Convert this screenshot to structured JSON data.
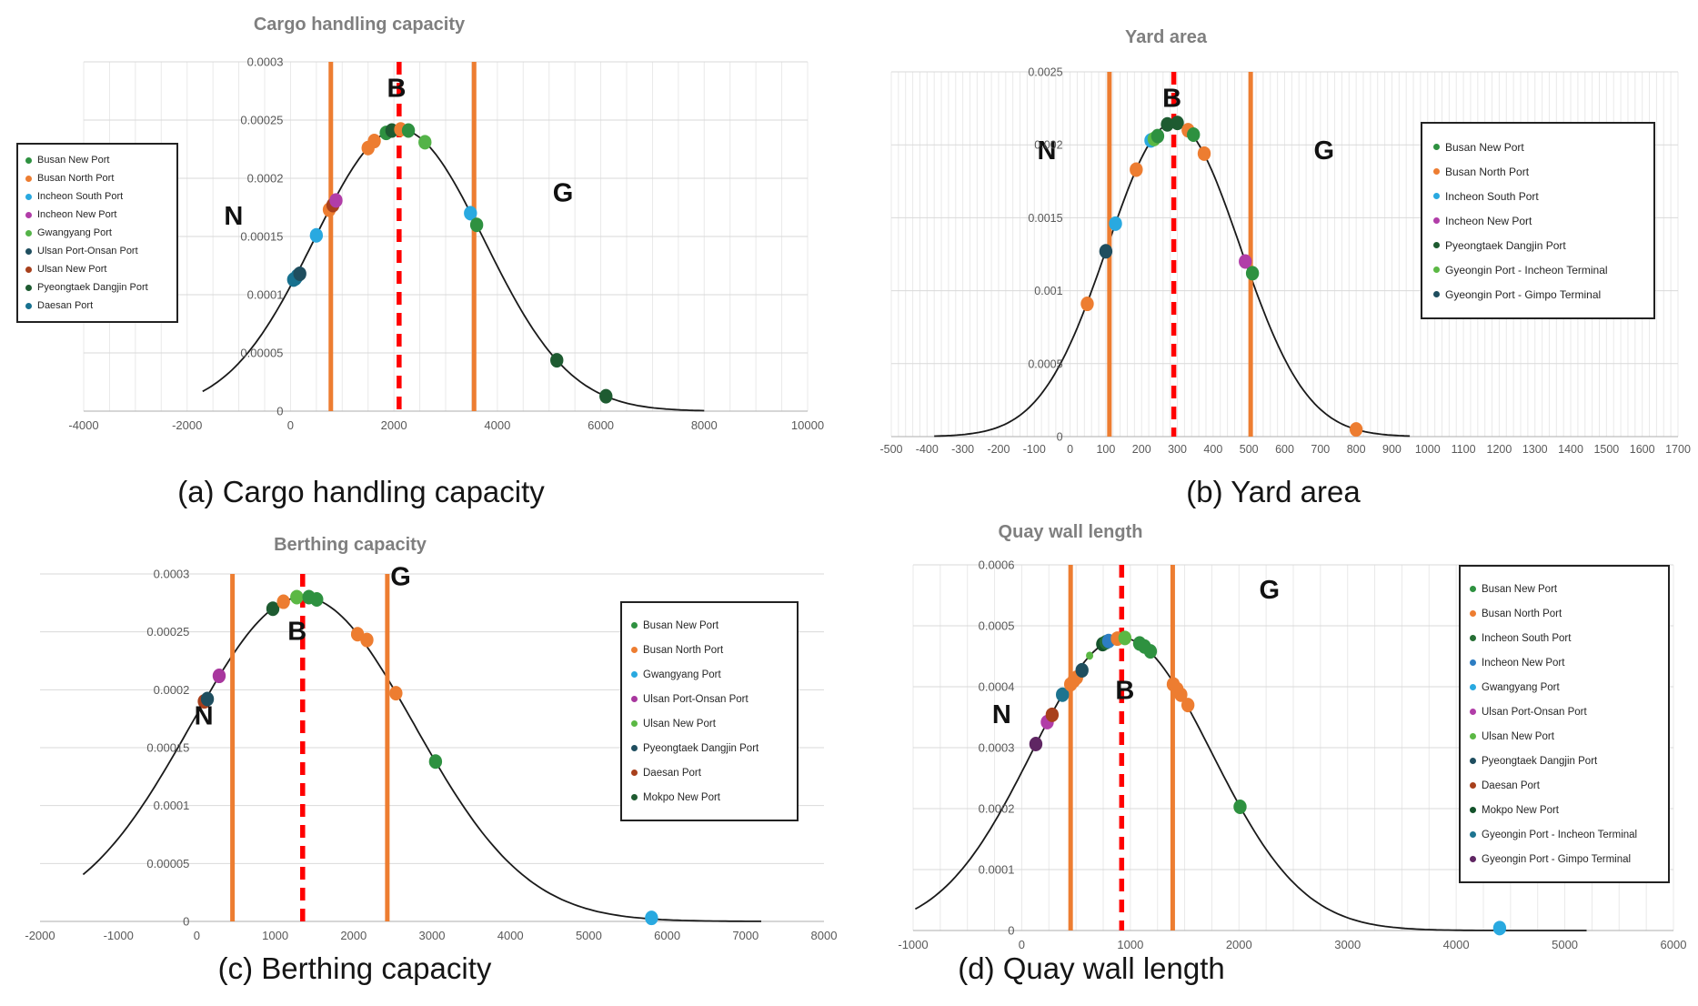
{
  "figure": {
    "captions": {
      "a": "(a) Cargo handling capacity",
      "b": "(b) Yard area",
      "c": "(c) Berthing capacity",
      "d": "(d) Quay wall length"
    }
  },
  "colors": {
    "orange_line": "#ED7D31",
    "red_dashed_line": "#FF0000",
    "curve": "#1a1a1a",
    "grid_horizontal": "#d9d9d9",
    "grid_vertical": "#e9e9e9",
    "axis_line": "#bdbdbd",
    "tick_text": "#595959",
    "annotation_text": "#111111",
    "title_text": "#7f7f7f"
  },
  "chart_data": [
    {
      "id": "a",
      "type": "scatter",
      "title": "Cargo handling capacity",
      "xlim": [
        -4000,
        10000
      ],
      "xticks": [
        -4000,
        -2000,
        0,
        2000,
        4000,
        6000,
        8000,
        10000
      ],
      "ylim": [
        0,
        0.0003
      ],
      "yticks": [
        0,
        5e-05,
        0.0001,
        0.00015,
        0.0002,
        0.00025,
        0.0003
      ],
      "ytick_labels": [
        "0",
        "0.00005",
        "0.0001",
        "0.00015",
        "0.0002",
        "0.00025",
        "0.0003"
      ],
      "x_minor_grid": 500,
      "curve": {
        "type": "normal_pdf",
        "mean": 2100,
        "sigma": 1648,
        "peak": 0.000242,
        "range": [
          -1700,
          8000
        ]
      },
      "marker_lines": {
        "orange": [
          780,
          3550
        ],
        "red_dashed": 2100
      },
      "annotations": [
        {
          "text": "N",
          "x": -1100,
          "y": 0.00016
        },
        {
          "text": "B",
          "x": 2050,
          "y": 0.00027
        },
        {
          "text": "G",
          "x": 5270,
          "y": 0.00018
        }
      ],
      "legend": {
        "position": "left",
        "items": [
          {
            "label": "Busan New Port",
            "color": "#2E9140"
          },
          {
            "label": "Busan North Port",
            "color": "#ED7D31"
          },
          {
            "label": "Incheon South Port",
            "color": "#29A9E0"
          },
          {
            "label": "Incheon New Port",
            "color": "#B13DA8"
          },
          {
            "label": "Gwangyang Port",
            "color": "#54B348"
          },
          {
            "label": "Ulsan Port-Onsan Port",
            "color": "#1F4E5F"
          },
          {
            "label": "Ulsan New Port",
            "color": "#A8401C"
          },
          {
            "label": "Pyeongtaek Dangjin Port",
            "color": "#1E5B31"
          },
          {
            "label": "Daesan Port",
            "color": "#17718F"
          }
        ]
      },
      "points": [
        {
          "port": "Daesan Port",
          "x": 60,
          "y": 0.000113
        },
        {
          "port": "Daesan Port",
          "x": 95,
          "y": 0.000114
        },
        {
          "port": "Daesan Port",
          "x": 130,
          "y": 0.000116
        },
        {
          "port": "Ulsan Port-Onsan Port",
          "x": 180,
          "y": 0.000118
        },
        {
          "port": "Incheon South Port",
          "x": 500,
          "y": 0.000151
        },
        {
          "port": "Busan North Port",
          "x": 750,
          "y": 0.000173
        },
        {
          "port": "Ulsan New Port",
          "x": 820,
          "y": 0.000177
        },
        {
          "port": "Incheon New Port",
          "x": 880,
          "y": 0.000181
        },
        {
          "port": "Busan North Port",
          "x": 1500,
          "y": 0.000226
        },
        {
          "port": "Busan North Port",
          "x": 1620,
          "y": 0.000232
        },
        {
          "port": "Busan New Port",
          "x": 1850,
          "y": 0.000239
        },
        {
          "port": "Pyeongtaek Dangjin Port",
          "x": 1960,
          "y": 0.000241
        },
        {
          "port": "Busan North Port",
          "x": 2130,
          "y": 0.000242
        },
        {
          "port": "Busan New Port",
          "x": 2280,
          "y": 0.000241
        },
        {
          "port": "Gwangyang Port",
          "x": 2600,
          "y": 0.000231
        },
        {
          "port": "Incheon South Port",
          "x": 3480,
          "y": 0.00017
        },
        {
          "port": "Busan New Port",
          "x": 3600,
          "y": 0.00016
        },
        {
          "port": "Pyeongtaek Dangjin Port",
          "x": 5150,
          "y": 4.37e-05
        },
        {
          "port": "Pyeongtaek Dangjin Port",
          "x": 6100,
          "y": 1.28e-05
        }
      ]
    },
    {
      "id": "b",
      "type": "scatter",
      "title": "Yard area",
      "xlim": [
        -500,
        1700
      ],
      "xticks": [
        -500,
        -400,
        -300,
        -200,
        -100,
        0,
        100,
        200,
        300,
        400,
        500,
        600,
        700,
        800,
        900,
        1000,
        1100,
        1200,
        1300,
        1400,
        1500,
        1600,
        1700
      ],
      "ylim": [
        0,
        0.0025
      ],
      "yticks": [
        0,
        0.0005,
        0.001,
        0.0015,
        0.002,
        0.0025
      ],
      "ytick_labels": [
        "0",
        "0.0005",
        "0.001",
        "0.0015",
        "0.002",
        "0.0025"
      ],
      "x_minor_grid": 20,
      "curve": {
        "type": "normal_pdf",
        "mean": 290,
        "sigma": 185.5,
        "peak": 0.00215,
        "range": [
          -380,
          950
        ]
      },
      "marker_lines": {
        "orange": [
          110,
          505
        ],
        "red_dashed": 290
      },
      "annotations": [
        {
          "text": "N",
          "x": -65,
          "y": 0.0019
        },
        {
          "text": "B",
          "x": 285,
          "y": 0.00226
        },
        {
          "text": "G",
          "x": 710,
          "y": 0.0019
        }
      ],
      "legend": {
        "position": "right",
        "items": [
          {
            "label": "Busan New Port",
            "color": "#2E9140"
          },
          {
            "label": "Busan North Port",
            "color": "#ED7D31"
          },
          {
            "label": "Incheon South Port",
            "color": "#29A9E0"
          },
          {
            "label": "Incheon New Port",
            "color": "#B13DA8"
          },
          {
            "label": "Pyeongtaek Dangjin Port",
            "color": "#1E5B31"
          },
          {
            "label": "Gyeongin Port - Incheon Terminal",
            "color": "#5BB844"
          },
          {
            "label": "Gyeongin Port - Gimpo Terminal",
            "color": "#1F4E5F"
          }
        ]
      },
      "points": [
        {
          "port": "Busan North Port",
          "x": 48,
          "y": 0.00091
        },
        {
          "port": "Gyeongin Port - Gimpo Terminal",
          "x": 100,
          "y": 0.00127
        },
        {
          "port": "Incheon South Port",
          "x": 127,
          "y": 0.00146
        },
        {
          "port": "Busan North Port",
          "x": 185,
          "y": 0.00183
        },
        {
          "port": "Incheon South Port",
          "x": 226,
          "y": 0.00203
        },
        {
          "port": "Gyeongin Port - Incheon Terminal",
          "x": 235,
          "y": 0.00204
        },
        {
          "port": "Busan New Port",
          "x": 245,
          "y": 0.00206
        },
        {
          "port": "Pyeongtaek Dangjin Port",
          "x": 272,
          "y": 0.00214
        },
        {
          "port": "Pyeongtaek Dangjin Port",
          "x": 300,
          "y": 0.00215
        },
        {
          "port": "Busan North Port",
          "x": 330,
          "y": 0.0021
        },
        {
          "port": "Busan New Port",
          "x": 345,
          "y": 0.00207
        },
        {
          "port": "Busan North Port",
          "x": 375,
          "y": 0.00194
        },
        {
          "port": "Incheon New Port",
          "x": 490,
          "y": 0.0012
        },
        {
          "port": "Busan New Port",
          "x": 510,
          "y": 0.00112
        },
        {
          "port": "Busan North Port",
          "x": 800,
          "y": 4.92e-05
        }
      ]
    },
    {
      "id": "c",
      "type": "scatter",
      "title": "Berthing capacity",
      "xlim": [
        -2000,
        8000
      ],
      "xticks": [
        -2000,
        -1000,
        0,
        1000,
        2000,
        3000,
        4000,
        5000,
        6000,
        7000,
        8000
      ],
      "ylim": [
        0,
        0.0003
      ],
      "yticks": [
        0,
        5e-05,
        0.0001,
        0.00015,
        0.0002,
        0.00025,
        0.0003
      ],
      "ytick_labels": [
        "0",
        "0.00005",
        "0.0001",
        "0.00015",
        "0.0002",
        "0.00025",
        "0.0003"
      ],
      "x_minor_grid": 0,
      "curve": {
        "type": "normal_pdf",
        "mean": 1350,
        "sigma": 1424,
        "peak": 0.00028,
        "range": [
          -1450,
          7200
        ]
      },
      "marker_lines": {
        "orange": [
          455,
          2430
        ],
        "red_dashed": 1350
      },
      "annotations": [
        {
          "text": "N",
          "x": 90,
          "y": 0.00017
        },
        {
          "text": "B",
          "x": 1280,
          "y": 0.000243
        },
        {
          "text": "G",
          "x": 2600,
          "y": 0.00029
        }
      ],
      "legend": {
        "position": "right",
        "items": [
          {
            "label": "Busan New Port",
            "color": "#2E9140"
          },
          {
            "label": "Busan North Port",
            "color": "#ED7D31"
          },
          {
            "label": "Gwangyang Port",
            "color": "#29A9E0"
          },
          {
            "label": "Ulsan Port-Onsan Port",
            "color": "#A8379E"
          },
          {
            "label": "Ulsan New Port",
            "color": "#5BB844"
          },
          {
            "label": "Pyeongtaek Dangjin Port",
            "color": "#1F4E5F"
          },
          {
            "label": "Daesan Port",
            "color": "#A8401C"
          },
          {
            "label": "Mokpo New Port",
            "color": "#1E5B31"
          }
        ]
      },
      "points": [
        {
          "port": "Daesan Port",
          "x": 95,
          "y": 0.00019
        },
        {
          "port": "Pyeongtaek Dangjin Port",
          "x": 135,
          "y": 0.000192
        },
        {
          "port": "Ulsan Port-Onsan Port",
          "x": 285,
          "y": 0.000212
        },
        {
          "port": "Mokpo New Port",
          "x": 970,
          "y": 0.00027
        },
        {
          "port": "Busan North Port",
          "x": 1105,
          "y": 0.000276
        },
        {
          "port": "Ulsan New Port",
          "x": 1275,
          "y": 0.00028
        },
        {
          "port": "Busan New Port",
          "x": 1430,
          "y": 0.00028
        },
        {
          "port": "Busan New Port",
          "x": 1530,
          "y": 0.000278
        },
        {
          "port": "Busan North Port",
          "x": 2050,
          "y": 0.000248
        },
        {
          "port": "Busan North Port",
          "x": 2170,
          "y": 0.000243
        },
        {
          "port": "Busan North Port",
          "x": 2540,
          "y": 0.000197
        },
        {
          "port": "Busan New Port",
          "x": 3045,
          "y": 0.000138
        },
        {
          "port": "Gwangyang Port",
          "x": 5800,
          "y": 3e-06
        }
      ]
    },
    {
      "id": "d",
      "type": "scatter",
      "title": "Quay wall length",
      "xlim": [
        -1000,
        6000
      ],
      "xticks": [
        -1000,
        0,
        1000,
        2000,
        3000,
        4000,
        5000,
        6000
      ],
      "ylim": [
        0,
        0.0006
      ],
      "yticks": [
        0,
        0.0001,
        0.0002,
        0.0003,
        0.0004,
        0.0005,
        0.0006
      ],
      "ytick_labels": [
        "0",
        "0.0001",
        "0.0002",
        "0.0003",
        "0.0004",
        "0.0005",
        "0.0006"
      ],
      "x_minor_grid": 250,
      "curve": {
        "type": "normal_pdf",
        "mean": 920,
        "sigma": 831,
        "peak": 0.00048,
        "range": [
          -980,
          5200
        ]
      },
      "marker_lines": {
        "orange": [
          450,
          1390
        ],
        "red_dashed": 920
      },
      "annotations": [
        {
          "text": "N",
          "x": -185,
          "y": 0.00034
        },
        {
          "text": "B",
          "x": 950,
          "y": 0.00038
        },
        {
          "text": "G",
          "x": 2280,
          "y": 0.000545
        }
      ],
      "legend": {
        "position": "right",
        "items": [
          {
            "label": "Busan New Port",
            "color": "#2E9140"
          },
          {
            "label": "Busan North Port",
            "color": "#ED7D31"
          },
          {
            "label": "Incheon South Port",
            "color": "#266E34"
          },
          {
            "label": "Incheon New Port",
            "color": "#2D7DC2"
          },
          {
            "label": "Gwangyang Port",
            "color": "#29A9E0"
          },
          {
            "label": "Ulsan Port-Onsan Port",
            "color": "#B13DA8"
          },
          {
            "label": "Ulsan New Port",
            "color": "#5BB844"
          },
          {
            "label": "Pyeongtaek Dangjin Port",
            "color": "#1F4E5F"
          },
          {
            "label": "Daesan Port",
            "color": "#A8401C"
          },
          {
            "label": "Mokpo New Port",
            "color": "#14532B"
          },
          {
            "label": "Gyeongin Port - Incheon Terminal",
            "color": "#1D7490"
          },
          {
            "label": "Gyeongin Port - Gimpo Terminal",
            "color": "#5F2663"
          }
        ]
      },
      "points": [
        {
          "port": "Gyeongin Port - Gimpo Terminal",
          "x": 130,
          "y": 0.000306
        },
        {
          "port": "Ulsan Port-Onsan Port",
          "x": 235,
          "y": 0.000342
        },
        {
          "port": "Daesan Port",
          "x": 280,
          "y": 0.000354
        },
        {
          "port": "Gyeongin Port - Incheon Terminal",
          "x": 375,
          "y": 0.000387
        },
        {
          "port": "Busan North Port",
          "x": 450,
          "y": 0.000404
        },
        {
          "port": "Busan North Port",
          "x": 480,
          "y": 0.00041
        },
        {
          "port": "Busan North Port",
          "x": 505,
          "y": 0.000415
        },
        {
          "port": "Pyeongtaek Dangjin Port",
          "x": 555,
          "y": 0.000427
        },
        {
          "port": "Ulsan New Port",
          "x": 625,
          "y": 0.000451,
          "small": true
        },
        {
          "port": "Mokpo New Port",
          "x": 745,
          "y": 0.00047
        },
        {
          "port": "Incheon South Port",
          "x": 775,
          "y": 0.000473
        },
        {
          "port": "Incheon New Port",
          "x": 800,
          "y": 0.000475
        },
        {
          "port": "Busan North Port",
          "x": 880,
          "y": 0.000479
        },
        {
          "port": "Ulsan New Port",
          "x": 950,
          "y": 0.00048
        },
        {
          "port": "Busan New Port",
          "x": 1085,
          "y": 0.000471
        },
        {
          "port": "Busan New Port",
          "x": 1130,
          "y": 0.000466
        },
        {
          "port": "Busan New Port",
          "x": 1185,
          "y": 0.000458
        },
        {
          "port": "Busan North Port",
          "x": 1395,
          "y": 0.000404
        },
        {
          "port": "Busan North Port",
          "x": 1430,
          "y": 0.000396
        },
        {
          "port": "Busan North Port",
          "x": 1465,
          "y": 0.000387
        },
        {
          "port": "Busan North Port",
          "x": 1530,
          "y": 0.00037
        },
        {
          "port": "Busan New Port",
          "x": 2010,
          "y": 0.000203
        },
        {
          "port": "Gwangyang Port",
          "x": 4400,
          "y": 4e-06
        }
      ]
    }
  ]
}
